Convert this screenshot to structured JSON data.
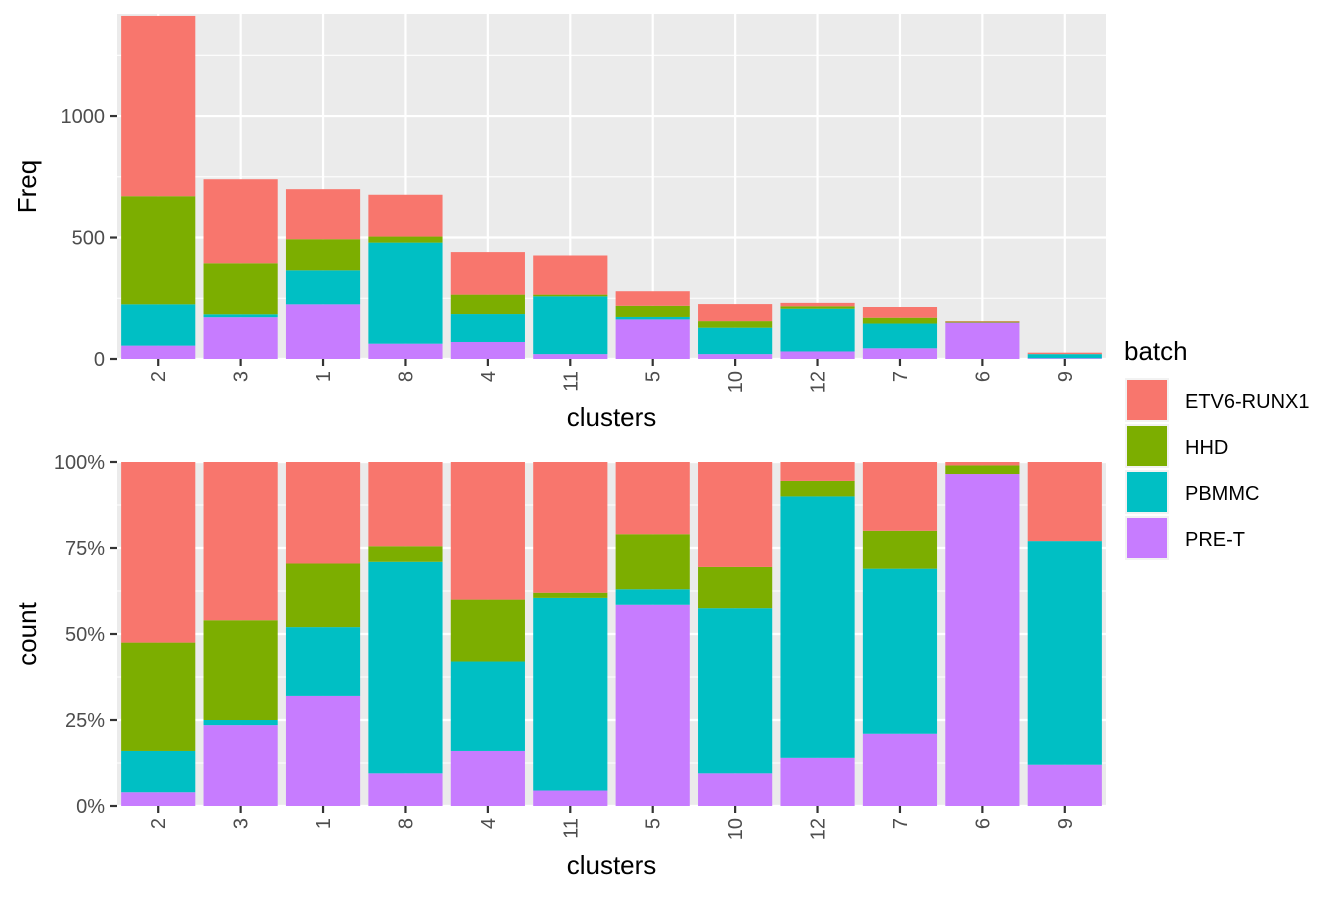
{
  "chart_data": [
    {
      "type": "bar",
      "stacked": true,
      "position": "stack",
      "xlabel": "clusters",
      "ylabel": "Freq",
      "ylim": [
        0,
        1420
      ],
      "yticks": [
        0,
        500,
        1000
      ],
      "ytick_labels": [
        "0",
        "500",
        "1000"
      ],
      "grid": true,
      "categories": [
        "2",
        "3",
        "1",
        "8",
        "4",
        "11",
        "5",
        "10",
        "12",
        "7",
        "6",
        "9"
      ],
      "series": [
        {
          "name": "PRE-T",
          "values": [
            55,
            172,
            225,
            63,
            70,
            20,
            163,
            20,
            31,
            44,
            150,
            3
          ]
        },
        {
          "name": "PBMMC",
          "values": [
            170,
            12,
            140,
            416,
            115,
            238,
            10,
            109,
            176,
            102,
            0,
            17
          ]
        },
        {
          "name": "HHD",
          "values": [
            445,
            210,
            128,
            25,
            80,
            7,
            46,
            27,
            10,
            24,
            4,
            0
          ]
        },
        {
          "name": "ETV6-RUNX1",
          "values": [
            742,
            346,
            206,
            172,
            175,
            161,
            60,
            70,
            14,
            44,
            2,
            6
          ]
        }
      ]
    },
    {
      "type": "bar",
      "stacked": true,
      "position": "fill",
      "xlabel": "clusters",
      "ylabel": "count",
      "ylim": [
        0,
        1
      ],
      "yticks": [
        0,
        0.25,
        0.5,
        0.75,
        1.0
      ],
      "ytick_labels": [
        "0%",
        "25%",
        "50%",
        "75%",
        "100%"
      ],
      "grid": true,
      "categories": [
        "2",
        "3",
        "1",
        "8",
        "4",
        "11",
        "5",
        "10",
        "12",
        "7",
        "6",
        "9"
      ],
      "series": [
        {
          "name": "PRE-T",
          "values": [
            0.04,
            0.235,
            0.32,
            0.095,
            0.16,
            0.045,
            0.585,
            0.095,
            0.14,
            0.21,
            0.965,
            0.12
          ]
        },
        {
          "name": "PBMMC",
          "values": [
            0.12,
            0.015,
            0.2,
            0.615,
            0.26,
            0.56,
            0.045,
            0.48,
            0.76,
            0.48,
            0.0,
            0.65
          ]
        },
        {
          "name": "HHD",
          "values": [
            0.315,
            0.29,
            0.185,
            0.045,
            0.18,
            0.015,
            0.16,
            0.12,
            0.045,
            0.11,
            0.025,
            0.0
          ]
        },
        {
          "name": "ETV6-RUNX1",
          "values": [
            0.525,
            0.46,
            0.295,
            0.245,
            0.4,
            0.38,
            0.21,
            0.305,
            0.055,
            0.2,
            0.01,
            0.23
          ]
        }
      ]
    }
  ],
  "legend": {
    "title": "batch",
    "placement": "right",
    "items": [
      {
        "label": "ETV6-RUNX1",
        "color": "#F8766D"
      },
      {
        "label": "HHD",
        "color": "#7CAE00"
      },
      {
        "label": "PBMMC",
        "color": "#00BFC4"
      },
      {
        "label": "PRE-T",
        "color": "#C77CFF"
      }
    ]
  },
  "colors": {
    "panel_background": "#EBEBEB",
    "grid_major": "#FFFFFF",
    "tick_text": "#4D4D4D"
  }
}
